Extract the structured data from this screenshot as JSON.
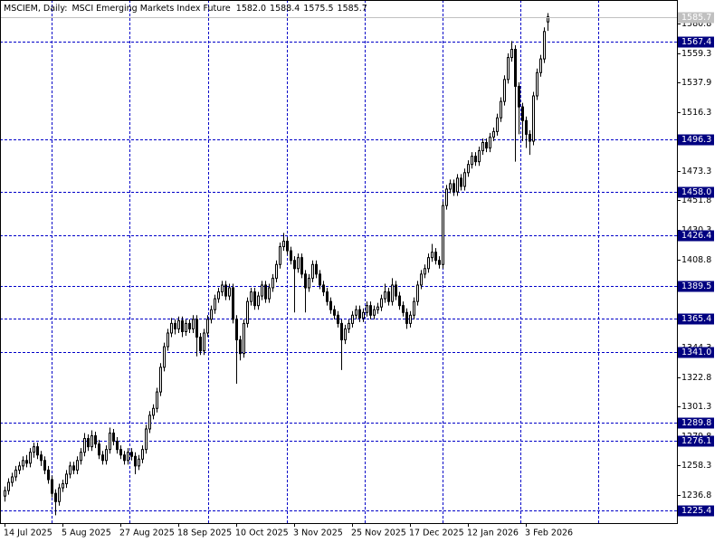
{
  "chart_data": {
    "type": "candlestick",
    "symbol": "MSCIEM, Daily:",
    "description": "MSCI Emerging Markets Index Future",
    "title_values": [
      "1582.0",
      "1588.4",
      "1575.5",
      "1585.7"
    ],
    "categories": [
      "14 Jul 2025",
      null,
      null,
      null,
      null,
      null,
      null,
      null,
      null,
      null,
      null,
      null,
      null,
      null,
      null,
      null,
      "5 Aug 2025",
      null,
      null,
      null,
      null,
      null,
      null,
      null,
      null,
      null,
      null,
      null,
      null,
      null,
      null,
      null,
      "27 Aug 2025",
      null,
      null,
      null,
      null,
      null,
      null,
      null,
      null,
      null,
      null,
      null,
      null,
      null,
      null,
      null,
      "18 Sep 2025",
      null,
      null,
      null,
      null,
      null,
      null,
      null,
      null,
      null,
      null,
      null,
      null,
      null,
      null,
      null,
      "10 Oct 2025",
      null,
      null,
      null,
      null,
      null,
      null,
      null,
      null,
      null,
      null,
      null,
      null,
      null,
      null,
      null,
      "3 Nov 2025",
      null,
      null,
      null,
      null,
      null,
      null,
      null,
      null,
      null,
      null,
      null,
      null,
      null,
      null,
      null,
      "25 Nov 2025",
      null,
      null,
      null,
      null,
      null,
      null,
      null,
      null,
      null,
      null,
      null,
      null,
      null,
      null,
      null,
      "17 Dec 2025",
      null,
      null,
      null,
      null,
      null,
      null,
      null,
      null,
      null,
      null,
      null,
      null,
      null,
      null,
      null,
      "12 Jan 2026",
      null,
      null,
      null,
      null,
      null,
      null,
      null,
      null,
      null,
      null,
      null,
      null,
      null,
      null,
      null,
      "3 Feb 2026",
      null,
      null,
      null,
      null,
      null,
      null
    ],
    "ohlc": [
      [
        1236,
        1243,
        1232,
        1240
      ],
      [
        1240,
        1249,
        1237,
        1246
      ],
      [
        1246,
        1253,
        1243,
        1250
      ],
      [
        1250,
        1258,
        1247,
        1255
      ],
      [
        1255,
        1261,
        1252,
        1258
      ],
      [
        1258,
        1265,
        1255,
        1262
      ],
      [
        1262,
        1266,
        1257,
        1260
      ],
      [
        1260,
        1271,
        1257,
        1268
      ],
      [
        1268,
        1275,
        1264,
        1272
      ],
      [
        1272,
        1275,
        1263,
        1266
      ],
      [
        1266,
        1269,
        1258,
        1262
      ],
      [
        1262,
        1265,
        1252,
        1255
      ],
      [
        1255,
        1258,
        1245,
        1248
      ],
      [
        1248,
        1251,
        1235,
        1238
      ],
      [
        1238,
        1241,
        1222,
        1232
      ],
      [
        1232,
        1245,
        1229,
        1242
      ],
      [
        1242,
        1248,
        1239,
        1245
      ],
      [
        1245,
        1255,
        1242,
        1252
      ],
      [
        1252,
        1261,
        1249,
        1258
      ],
      [
        1258,
        1261,
        1252,
        1255
      ],
      [
        1255,
        1265,
        1252,
        1262
      ],
      [
        1262,
        1271,
        1259,
        1268
      ],
      [
        1268,
        1282,
        1265,
        1278
      ],
      [
        1278,
        1281,
        1269,
        1272
      ],
      [
        1272,
        1284,
        1269,
        1280
      ],
      [
        1280,
        1283,
        1271,
        1274
      ],
      [
        1274,
        1277,
        1263,
        1266
      ],
      [
        1266,
        1269,
        1259,
        1262
      ],
      [
        1262,
        1273,
        1259,
        1270
      ],
      [
        1270,
        1286,
        1267,
        1282
      ],
      [
        1282,
        1285,
        1273,
        1276
      ],
      [
        1276,
        1279,
        1267,
        1270
      ],
      [
        1270,
        1273,
        1263,
        1266
      ],
      [
        1266,
        1269,
        1259,
        1262
      ],
      [
        1262,
        1271,
        1259,
        1268
      ],
      [
        1268,
        1271,
        1262,
        1265
      ],
      [
        1265,
        1268,
        1252,
        1258
      ],
      [
        1258,
        1266,
        1255,
        1263
      ],
      [
        1263,
        1273,
        1260,
        1270
      ],
      [
        1270,
        1288,
        1267,
        1285
      ],
      [
        1285,
        1298,
        1282,
        1295
      ],
      [
        1295,
        1303,
        1292,
        1300
      ],
      [
        1300,
        1315,
        1297,
        1312
      ],
      [
        1312,
        1333,
        1309,
        1330
      ],
      [
        1330,
        1348,
        1327,
        1345
      ],
      [
        1345,
        1358,
        1342,
        1355
      ],
      [
        1355,
        1366,
        1352,
        1362
      ],
      [
        1362,
        1365,
        1354,
        1358
      ],
      [
        1358,
        1367,
        1355,
        1364
      ],
      [
        1364,
        1367,
        1352,
        1356
      ],
      [
        1356,
        1365,
        1353,
        1362
      ],
      [
        1362,
        1365,
        1355,
        1358
      ],
      [
        1358,
        1368,
        1355,
        1365
      ],
      [
        1365,
        1368,
        1338,
        1352
      ],
      [
        1352,
        1355,
        1339,
        1342
      ],
      [
        1342,
        1358,
        1339,
        1355
      ],
      [
        1355,
        1368,
        1352,
        1365
      ],
      [
        1365,
        1375,
        1362,
        1372
      ],
      [
        1372,
        1383,
        1369,
        1380
      ],
      [
        1380,
        1388,
        1377,
        1385
      ],
      [
        1385,
        1393,
        1382,
        1390
      ],
      [
        1390,
        1393,
        1379,
        1382
      ],
      [
        1382,
        1391,
        1379,
        1388
      ],
      [
        1388,
        1391,
        1362,
        1365
      ],
      [
        1365,
        1368,
        1318,
        1350
      ],
      [
        1350,
        1353,
        1335,
        1340
      ],
      [
        1340,
        1365,
        1337,
        1362
      ],
      [
        1362,
        1381,
        1359,
        1378
      ],
      [
        1378,
        1388,
        1375,
        1385
      ],
      [
        1385,
        1388,
        1372,
        1375
      ],
      [
        1375,
        1385,
        1372,
        1382
      ],
      [
        1382,
        1393,
        1379,
        1390
      ],
      [
        1390,
        1393,
        1377,
        1380
      ],
      [
        1380,
        1391,
        1377,
        1388
      ],
      [
        1388,
        1398,
        1385,
        1395
      ],
      [
        1395,
        1408,
        1392,
        1405
      ],
      [
        1405,
        1421,
        1402,
        1418
      ],
      [
        1418,
        1428,
        1415,
        1422
      ],
      [
        1422,
        1425,
        1412,
        1415
      ],
      [
        1415,
        1418,
        1405,
        1408
      ],
      [
        1408,
        1411,
        1370,
        1402
      ],
      [
        1402,
        1413,
        1399,
        1410
      ],
      [
        1410,
        1413,
        1395,
        1398
      ],
      [
        1398,
        1401,
        1370,
        1388
      ],
      [
        1388,
        1398,
        1385,
        1395
      ],
      [
        1395,
        1408,
        1392,
        1405
      ],
      [
        1405,
        1408,
        1395,
        1398
      ],
      [
        1398,
        1401,
        1387,
        1390
      ],
      [
        1390,
        1393,
        1382,
        1385
      ],
      [
        1385,
        1388,
        1375,
        1378
      ],
      [
        1378,
        1381,
        1369,
        1372
      ],
      [
        1372,
        1375,
        1365,
        1368
      ],
      [
        1368,
        1371,
        1359,
        1362
      ],
      [
        1362,
        1365,
        1328,
        1350
      ],
      [
        1350,
        1361,
        1347,
        1358
      ],
      [
        1358,
        1365,
        1355,
        1362
      ],
      [
        1362,
        1371,
        1359,
        1368
      ],
      [
        1368,
        1375,
        1365,
        1372
      ],
      [
        1372,
        1375,
        1363,
        1366
      ],
      [
        1366,
        1373,
        1363,
        1370
      ],
      [
        1370,
        1378,
        1367,
        1375
      ],
      [
        1375,
        1378,
        1365,
        1368
      ],
      [
        1368,
        1375,
        1365,
        1372
      ],
      [
        1372,
        1377,
        1369,
        1374
      ],
      [
        1374,
        1383,
        1371,
        1380
      ],
      [
        1380,
        1391,
        1377,
        1385
      ],
      [
        1385,
        1388,
        1375,
        1378
      ],
      [
        1378,
        1395,
        1375,
        1390
      ],
      [
        1390,
        1393,
        1379,
        1382
      ],
      [
        1382,
        1385,
        1372,
        1375
      ],
      [
        1375,
        1378,
        1367,
        1370
      ],
      [
        1370,
        1373,
        1358,
        1362
      ],
      [
        1362,
        1371,
        1359,
        1368
      ],
      [
        1368,
        1381,
        1365,
        1378
      ],
      [
        1378,
        1393,
        1375,
        1390
      ],
      [
        1390,
        1401,
        1387,
        1398
      ],
      [
        1398,
        1405,
        1395,
        1402
      ],
      [
        1402,
        1413,
        1399,
        1410
      ],
      [
        1410,
        1420,
        1407,
        1414
      ],
      [
        1414,
        1417,
        1405,
        1408
      ],
      [
        1408,
        1411,
        1402,
        1405
      ],
      [
        1405,
        1451,
        1402,
        1448
      ],
      [
        1448,
        1463,
        1445,
        1460
      ],
      [
        1460,
        1467,
        1457,
        1464
      ],
      [
        1464,
        1467,
        1455,
        1458
      ],
      [
        1458,
        1471,
        1455,
        1468
      ],
      [
        1468,
        1471,
        1459,
        1462
      ],
      [
        1462,
        1475,
        1459,
        1472
      ],
      [
        1472,
        1481,
        1469,
        1478
      ],
      [
        1478,
        1487,
        1475,
        1484
      ],
      [
        1484,
        1487,
        1477,
        1480
      ],
      [
        1480,
        1491,
        1477,
        1488
      ],
      [
        1488,
        1497,
        1485,
        1494
      ],
      [
        1494,
        1497,
        1487,
        1490
      ],
      [
        1490,
        1501,
        1487,
        1498
      ],
      [
        1498,
        1505,
        1495,
        1502
      ],
      [
        1502,
        1515,
        1499,
        1512
      ],
      [
        1512,
        1527,
        1509,
        1524
      ],
      [
        1524,
        1543,
        1521,
        1540
      ],
      [
        1540,
        1559,
        1537,
        1556
      ],
      [
        1556,
        1568,
        1553,
        1562
      ],
      [
        1562,
        1565,
        1480,
        1535
      ],
      [
        1535,
        1538,
        1500,
        1520
      ],
      [
        1520,
        1523,
        1495,
        1510
      ],
      [
        1510,
        1513,
        1490,
        1500
      ],
      [
        1500,
        1503,
        1485,
        1495
      ],
      [
        1495,
        1531,
        1492,
        1528
      ],
      [
        1528,
        1548,
        1525,
        1545
      ],
      [
        1545,
        1558,
        1542,
        1555
      ],
      [
        1555,
        1578,
        1552,
        1575
      ],
      [
        1582.0,
        1588.4,
        1575.5,
        1585.7
      ]
    ],
    "ylim": [
      1216.3,
      1598.0
    ],
    "yticks": [
      1580.8,
      1559.3,
      1537.9,
      1516.3,
      1473.3,
      1451.8,
      1430.3,
      1408.8,
      1344.3,
      1322.8,
      1301.3,
      1279.8,
      1258.3,
      1236.8
    ],
    "levels": [
      1567.4,
      1496.3,
      {
        "value": 1458,
        "label": "1458.0"
      },
      1426.4,
      1389.5,
      1365.4,
      {
        "value": 1341,
        "label": "1341.0"
      },
      1289.8,
      1276.1,
      1225.4
    ],
    "bull_color": "#ffffff",
    "bear_color": "#000000",
    "level_color": "#0000c8"
  }
}
